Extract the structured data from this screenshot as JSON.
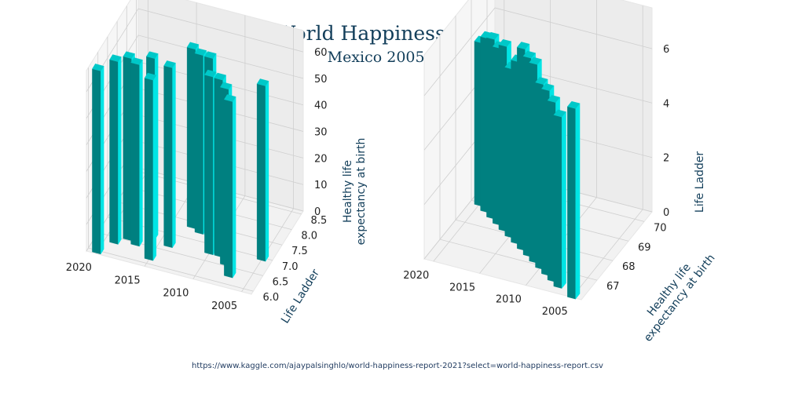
{
  "title": "World Happiness Report",
  "subtitle": "Mexico 2005-2020",
  "source": "https://www.kaggle.com/ajaypalsinghlo/world-happiness-report-2021?select=world-happiness-report.csv",
  "colors": {
    "bar_light": "#00e5e5",
    "bar_mid": "#00c8c8",
    "bar_dark": "#008080",
    "pane": "#f2f2f2",
    "grid": "#cfcfcf",
    "text": "#123e5a"
  },
  "chart_data": [
    {
      "type": "bar",
      "projection": "3d",
      "x_name": "year",
      "y_name": "Life Ladder",
      "z_name": "Healthy life expectancy at birth",
      "x": [
        2005,
        2007,
        2008,
        2009,
        2010,
        2011,
        2012,
        2013,
        2014,
        2015,
        2016,
        2017,
        2018,
        2019,
        2020
      ],
      "y": [
        7.0,
        6.3,
        6.6,
        6.8,
        6.8,
        7.3,
        7.3,
        7.4,
        6.7,
        6.2,
        6.8,
        6.5,
        6.6,
        6.4,
        6.0
      ],
      "z": [
        66.1,
        66.4,
        66.6,
        66.8,
        67.0,
        67.2,
        67.4,
        67.6,
        67.8,
        68.0,
        68.2,
        68.4,
        68.6,
        68.8,
        69.0
      ],
      "xticks": [
        "2005",
        "2010",
        "2015",
        "2020"
      ],
      "yticks": [
        "6.0",
        "6.5",
        "7.0",
        "7.5",
        "8.0",
        "8.5"
      ],
      "zticks": [
        "0",
        "10",
        "20",
        "30",
        "40",
        "50",
        "60"
      ],
      "ylabel": "Life Ladder",
      "zlabel_lines": [
        "Healthy life",
        "expectancy at birth"
      ],
      "xlim": [
        2004,
        2021
      ],
      "ylim": [
        5.9,
        8.6
      ],
      "zlim": [
        0,
        68
      ]
    },
    {
      "type": "bar",
      "projection": "3d",
      "x_name": "year",
      "y_name": "Healthy life expectancy at birth",
      "z_name": "Life Ladder",
      "x": [
        2005,
        2007,
        2008,
        2009,
        2010,
        2011,
        2012,
        2013,
        2014,
        2015,
        2016,
        2017,
        2018,
        2019,
        2020
      ],
      "y": [
        66.1,
        66.4,
        66.6,
        66.8,
        67.0,
        67.2,
        67.4,
        67.6,
        67.8,
        68.0,
        68.2,
        68.4,
        68.6,
        68.8,
        69.0
      ],
      "z": [
        7.0,
        6.3,
        6.6,
        6.8,
        6.8,
        7.3,
        7.3,
        7.4,
        6.7,
        6.2,
        6.8,
        6.5,
        6.6,
        6.4,
        6.0
      ],
      "xticks": [
        "2005",
        "2010",
        "2015",
        "2020"
      ],
      "yticks": [
        "67",
        "68",
        "69",
        "70"
      ],
      "zticks": [
        "0",
        "2",
        "4",
        "6"
      ],
      "ylabel_lines": [
        "Healthy life",
        "expectancy at birth"
      ],
      "zlabel": "Life Ladder",
      "xlim": [
        2004,
        2021
      ],
      "ylim": [
        66,
        70.5
      ],
      "zlim": [
        0,
        7.5
      ]
    }
  ]
}
